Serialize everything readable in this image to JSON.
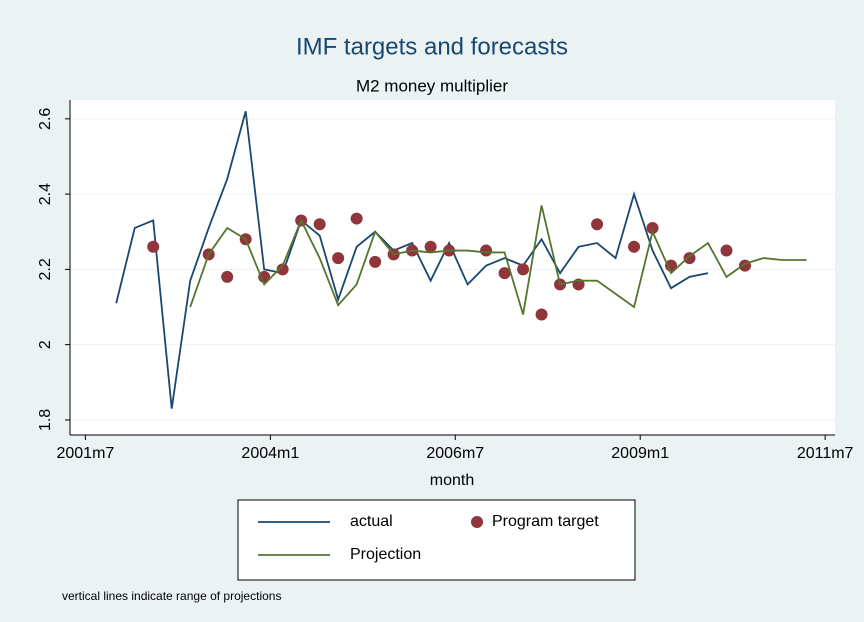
{
  "chart_data": {
    "type": "line",
    "title": "IMF targets and forecasts",
    "subtitle": "M2 money multiplier",
    "x_label": "month",
    "note": "vertical lines indicate range of projections",
    "xlim": [
      495.5,
      619.6
    ],
    "ylim": [
      1.76,
      2.65
    ],
    "xticks": [
      {
        "value": 498,
        "label": "2001m7"
      },
      {
        "value": 528,
        "label": "2004m1"
      },
      {
        "value": 558,
        "label": "2006m7"
      },
      {
        "value": 588,
        "label": "2009m1"
      },
      {
        "value": 618,
        "label": "2011m7"
      }
    ],
    "yticks": [
      1.8,
      2,
      2.2,
      2.4,
      2.6
    ],
    "grid": true,
    "legend": "bottom",
    "series": [
      {
        "name": "actual",
        "type": "line",
        "color": "#1a476f",
        "x": [
          503,
          506,
          509,
          512,
          515,
          518,
          521,
          524,
          527,
          530,
          533,
          536,
          539,
          542,
          545,
          548,
          551,
          554,
          557,
          560,
          563,
          566,
          569,
          572,
          575,
          578,
          581,
          584,
          587,
          590,
          593,
          596,
          599
        ],
        "values": [
          2.11,
          2.31,
          2.33,
          1.83,
          2.17,
          2.31,
          2.44,
          2.62,
          2.2,
          2.19,
          2.33,
          2.29,
          2.12,
          2.26,
          2.3,
          2.25,
          2.27,
          2.17,
          2.27,
          2.16,
          2.21,
          2.23,
          2.21,
          2.28,
          2.19,
          2.26,
          2.27,
          2.23,
          2.4,
          2.25,
          2.15,
          2.18,
          2.19
        ]
      },
      {
        "name": "Program target",
        "type": "scatter",
        "color": "#90353b",
        "x": [
          509,
          518,
          521,
          524,
          527,
          530,
          533,
          536,
          539,
          542,
          545,
          548,
          551,
          554,
          557,
          563,
          566,
          569,
          572,
          575,
          578,
          581,
          587,
          590,
          593,
          596,
          602,
          605
        ],
        "values": [
          2.26,
          2.24,
          2.18,
          2.28,
          2.18,
          2.2,
          2.33,
          2.32,
          2.23,
          2.335,
          2.22,
          2.24,
          2.25,
          2.26,
          2.25,
          2.25,
          2.19,
          2.2,
          2.08,
          2.16,
          2.16,
          2.32,
          2.26,
          2.31,
          2.21,
          2.23,
          2.25,
          2.21
        ]
      },
      {
        "name": "Projection",
        "type": "line",
        "color": "#55752f",
        "x": [
          515,
          518,
          521,
          524,
          527,
          530,
          533,
          536,
          539,
          542,
          545,
          548,
          551,
          554,
          557,
          560,
          563,
          566,
          569,
          572,
          575,
          578,
          581,
          587,
          590,
          593,
          596,
          599,
          602,
          605,
          608,
          611,
          615
        ],
        "values": [
          2.1,
          2.24,
          2.31,
          2.28,
          2.16,
          2.21,
          2.33,
          2.23,
          2.105,
          2.16,
          2.3,
          2.24,
          2.25,
          2.245,
          2.25,
          2.25,
          2.245,
          2.245,
          2.08,
          2.37,
          2.16,
          2.17,
          2.17,
          2.1,
          2.3,
          2.19,
          2.235,
          2.27,
          2.18,
          2.215,
          2.23,
          2.225,
          2.225
        ]
      }
    ]
  }
}
